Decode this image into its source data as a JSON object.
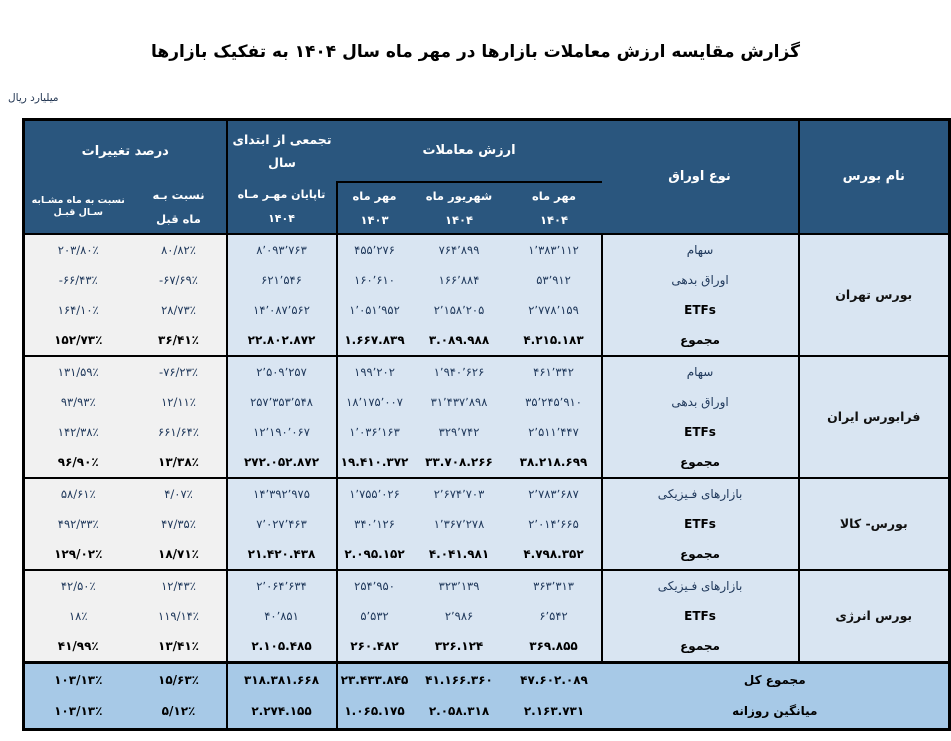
{
  "title": "گزارش مقایسه ارزش معاملات بازارها در مهر ماه سال ۱۴۰۴ به تفکیک بازارها",
  "unit_label": "میلیارد ریال",
  "table": {
    "headers": {
      "exchange": "نام بورس",
      "security_type": "نوع اوراق",
      "trade_value_group": "ارزش معاملات",
      "cumulative_line1": "تجمعی از ابتدای",
      "cumulative_line2": "سال",
      "pct_group": "درصد تغییرات",
      "mehr_1404_l1": "مهر ماه",
      "mehr_1404_l2": "۱۴۰۴",
      "shahrivar_1404_l1": "شهریور ماه",
      "shahrivar_1404_l2": "۱۴۰۴",
      "mehr_1403_l1": "مهر ماه",
      "mehr_1403_l2": "۱۴۰۳",
      "ytd_l1": "تاپایان مهـر مـاه",
      "ytd_l2": "۱۴۰۴",
      "mom_l1": "نسبت بـه",
      "mom_l2": "ماه قبل",
      "yoy": "نسبت به ماه مشـابه سـال قبـل"
    },
    "blocks": [
      {
        "exchange": "بورس تهران",
        "rows": [
          {
            "type": "سهام",
            "type_bold": false,
            "bold": false,
            "values": {
              "mehr_1404": "۱٬۳۸۳٬۱۱۲",
              "shahrivar_1404": "۷۶۴٬۸۹۹",
              "mehr_1403": "۴۵۵٬۲۷۶",
              "ytd": "۸٬۰۹۳٬۷۶۳",
              "mom": "۸۰/۸۲٪",
              "yoy": "۲۰۳/۸۰٪"
            }
          },
          {
            "type": "اوراق بدهی",
            "type_bold": false,
            "bold": false,
            "values": {
              "mehr_1404": "۵۳٬۹۱۲",
              "shahrivar_1404": "۱۶۶٬۸۸۴",
              "mehr_1403": "۱۶۰٬۶۱۰",
              "ytd": "۶۲۱٬۵۴۶",
              "mom": "-۶۷/۶۹٪",
              "yoy": "-۶۶/۴۳٪"
            }
          },
          {
            "type": "ETFs",
            "type_bold": true,
            "bold": false,
            "values": {
              "mehr_1404": "۲٬۷۷۸٬۱۵۹",
              "shahrivar_1404": "۲٬۱۵۸٬۲۰۵",
              "mehr_1403": "۱٬۰۵۱٬۹۵۲",
              "ytd": "۱۴٬۰۸۷٬۵۶۲",
              "mom": "۲۸/۷۳٪",
              "yoy": "۱۶۴/۱۰٪"
            }
          },
          {
            "type": "مجموع",
            "type_bold": true,
            "bold": true,
            "values": {
              "mehr_1404": "۴.۲۱۵.۱۸۳",
              "shahrivar_1404": "۳.۰۸۹.۹۸۸",
              "mehr_1403": "۱.۶۶۷.۸۳۹",
              "ytd": "۲۲.۸۰۲.۸۷۲",
              "mom": "۳۶/۴۱٪",
              "yoy": "۱۵۲/۷۳٪"
            }
          }
        ]
      },
      {
        "exchange": "فرابورس ایران",
        "rows": [
          {
            "type": "سهام",
            "type_bold": false,
            "bold": false,
            "values": {
              "mehr_1404": "۴۶۱٬۳۴۲",
              "shahrivar_1404": "۱٬۹۴۰٬۶۲۶",
              "mehr_1403": "۱۹۹٬۲۰۲",
              "ytd": "۲٬۵۰۹٬۲۵۷",
              "mom": "-۷۶/۲۳٪",
              "yoy": "۱۳۱/۵۹٪"
            }
          },
          {
            "type": "اوراق بدهی",
            "type_bold": false,
            "bold": false,
            "values": {
              "mehr_1404": "۳۵٬۲۴۵٬۹۱۰",
              "shahrivar_1404": "۳۱٬۴۳۷٬۸۹۸",
              "mehr_1403": "۱۸٬۱۷۵٬۰۰۷",
              "ytd": "۲۵۷٬۳۵۳٬۵۴۸",
              "mom": "۱۲/۱۱٪",
              "yoy": "۹۳/۹۳٪"
            }
          },
          {
            "type": "ETFs",
            "type_bold": true,
            "bold": false,
            "values": {
              "mehr_1404": "۲٬۵۱۱٬۴۴۷",
              "shahrivar_1404": "۳۲۹٬۷۴۲",
              "mehr_1403": "۱٬۰۳۶٬۱۶۳",
              "ytd": "۱۲٬۱۹۰٬۰۶۷",
              "mom": "۶۶۱/۶۴٪",
              "yoy": "۱۴۲/۳۸٪"
            }
          },
          {
            "type": "مجموع",
            "type_bold": true,
            "bold": true,
            "values": {
              "mehr_1404": "۳۸.۲۱۸.۶۹۹",
              "shahrivar_1404": "۳۳.۷۰۸.۲۶۶",
              "mehr_1403": "۱۹.۴۱۰.۳۷۲",
              "ytd": "۲۷۲.۰۵۲.۸۷۲",
              "mom": "۱۳/۳۸٪",
              "yoy": "۹۶/۹۰٪"
            }
          }
        ]
      },
      {
        "exchange": "بورس- کالا",
        "rows": [
          {
            "type": "بازارهای فـیزیکی",
            "type_bold": false,
            "bold": false,
            "values": {
              "mehr_1404": "۲٬۷۸۳٬۶۸۷",
              "shahrivar_1404": "۲٬۶۷۴٬۷۰۳",
              "mehr_1403": "۱٬۷۵۵٬۰۲۶",
              "ytd": "۱۴٬۳۹۲٬۹۷۵",
              "mom": "۴/۰۷٪",
              "yoy": "۵۸/۶۱٪"
            }
          },
          {
            "type": "ETFs",
            "type_bold": true,
            "bold": false,
            "values": {
              "mehr_1404": "۲٬۰۱۴٬۶۶۵",
              "shahrivar_1404": "۱٬۳۶۷٬۲۷۸",
              "mehr_1403": "۳۴۰٬۱۲۶",
              "ytd": "۷٬۰۲۷٬۴۶۳",
              "mom": "۴۷/۳۵٪",
              "yoy": "۴۹۲/۳۳٪"
            }
          },
          {
            "type": "مجموع",
            "type_bold": true,
            "bold": true,
            "values": {
              "mehr_1404": "۴.۷۹۸.۳۵۲",
              "shahrivar_1404": "۴.۰۴۱.۹۸۱",
              "mehr_1403": "۲.۰۹۵.۱۵۲",
              "ytd": "۲۱.۴۲۰.۴۳۸",
              "mom": "۱۸/۷۱٪",
              "yoy": "۱۲۹/۰۲٪"
            }
          }
        ]
      },
      {
        "exchange": "بورس انرژی",
        "rows": [
          {
            "type": "بازارهای فـیزیکی",
            "type_bold": false,
            "bold": false,
            "values": {
              "mehr_1404": "۳۶۳٬۳۱۳",
              "shahrivar_1404": "۳۲۳٬۱۳۹",
              "mehr_1403": "۲۵۴٬۹۵۰",
              "ytd": "۲٬۰۶۴٬۶۳۴",
              "mom": "۱۲/۴۳٪",
              "yoy": "۴۲/۵۰٪"
            }
          },
          {
            "type": "ETFs",
            "type_bold": true,
            "bold": false,
            "values": {
              "mehr_1404": "۶٬۵۴۲",
              "shahrivar_1404": "۲٬۹۸۶",
              "mehr_1403": "۵٬۵۳۲",
              "ytd": "۴۰٬۸۵۱",
              "mom": "۱۱۹/۱۴٪",
              "yoy": "۱۸٪"
            }
          },
          {
            "type": "مجموع",
            "type_bold": true,
            "bold": true,
            "values": {
              "mehr_1404": "۳۶۹.۸۵۵",
              "shahrivar_1404": "۳۲۶.۱۲۴",
              "mehr_1403": "۲۶۰.۴۸۲",
              "ytd": "۲.۱۰۵.۴۸۵",
              "mom": "۱۳/۴۱٪",
              "yoy": "۴۱/۹۹٪"
            }
          }
        ]
      }
    ],
    "footer": [
      {
        "label": "مجموع کل",
        "values": {
          "mehr_1404": "۴۷.۶۰۲.۰۸۹",
          "shahrivar_1404": "۴۱.۱۶۶.۳۶۰",
          "mehr_1403": "۲۳.۴۳۳.۸۴۵",
          "ytd": "۳۱۸.۳۸۱.۶۶۸",
          "mom": "۱۵/۶۳٪",
          "yoy": "۱۰۳/۱۳٪"
        }
      },
      {
        "label": "میانگین روزانه",
        "values": {
          "mehr_1404": "۲.۱۶۳.۷۳۱",
          "shahrivar_1404": "۲.۰۵۸.۳۱۸",
          "mehr_1403": "۱.۰۶۵.۱۷۵",
          "ytd": "۲.۲۷۴.۱۵۵",
          "mom": "۵/۱۲٪",
          "yoy": "۱۰۳/۱۳٪"
        }
      }
    ]
  }
}
